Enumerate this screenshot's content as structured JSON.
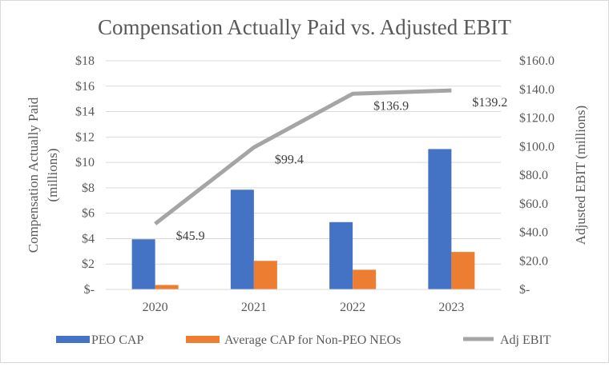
{
  "chart_data": {
    "type": "bar",
    "title": "Compensation Actually Paid vs. Adjusted EBIT",
    "categories": [
      "2020",
      "2021",
      "2022",
      "2023"
    ],
    "ylabel": "Compensation Actually Paid (millions)",
    "ylabel_lines": [
      "Compensation Actually Paid",
      "(millions)"
    ],
    "y2label": "Adjusted EBIT (millions)",
    "ylim": [
      0,
      18
    ],
    "y2lim": [
      0,
      160
    ],
    "yticks": [
      {
        "value": 0,
        "label": "$-"
      },
      {
        "value": 2,
        "label": "$2"
      },
      {
        "value": 4,
        "label": "$4"
      },
      {
        "value": 6,
        "label": "$6"
      },
      {
        "value": 8,
        "label": "$8"
      },
      {
        "value": 10,
        "label": "$10"
      },
      {
        "value": 12,
        "label": "$12"
      },
      {
        "value": 14,
        "label": "$14"
      },
      {
        "value": 16,
        "label": "$16"
      },
      {
        "value": 18,
        "label": "$18"
      }
    ],
    "y2ticks": [
      {
        "value": 0,
        "label": "$-"
      },
      {
        "value": 20,
        "label": "$20.0"
      },
      {
        "value": 40,
        "label": "$40.0"
      },
      {
        "value": 60,
        "label": "$60.0"
      },
      {
        "value": 80,
        "label": "$80.0"
      },
      {
        "value": 100,
        "label": "$100.0"
      },
      {
        "value": 120,
        "label": "$120.0"
      },
      {
        "value": 140,
        "label": "$140.0"
      },
      {
        "value": 160,
        "label": "$160.0"
      }
    ],
    "grid": true,
    "legend": "bottom",
    "series": [
      {
        "name": "PEO CAP",
        "type": "bar",
        "axis": "left",
        "color": "#4472C4",
        "values": [
          3.95,
          7.85,
          5.3,
          11.05
        ]
      },
      {
        "name": "Average CAP for Non-PEO NEOs",
        "type": "bar",
        "axis": "left",
        "color": "#ED7D31",
        "values": [
          0.35,
          2.25,
          1.55,
          2.95
        ]
      },
      {
        "name": "Adj EBIT",
        "type": "line",
        "axis": "right",
        "color": "#A5A5A5",
        "values": [
          45.9,
          99.4,
          136.9,
          139.2
        ],
        "labels": [
          "$45.9",
          "$99.4",
          "$136.9",
          "$139.2"
        ]
      }
    ]
  }
}
